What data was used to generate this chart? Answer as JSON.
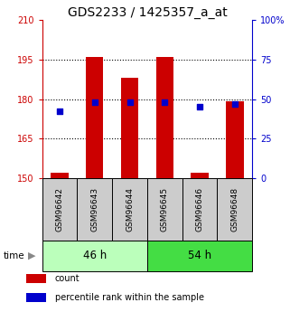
{
  "title": "GDS2233 / 1425357_a_at",
  "samples": [
    "GSM96642",
    "GSM96643",
    "GSM96644",
    "GSM96645",
    "GSM96646",
    "GSM96648"
  ],
  "red_values": [
    152,
    196,
    188,
    196,
    152,
    179
  ],
  "blue_values_pct": [
    42,
    48,
    48,
    48,
    45,
    47
  ],
  "ylim_left": [
    150,
    210
  ],
  "ylim_right": [
    0,
    100
  ],
  "yticks_left": [
    150,
    165,
    180,
    195,
    210
  ],
  "yticks_right": [
    0,
    25,
    50,
    75,
    100
  ],
  "left_tick_color": "#cc0000",
  "right_tick_color": "#0000cc",
  "bar_color": "#cc0000",
  "dot_color": "#0000cc",
  "groups": [
    {
      "label": "46 h",
      "indices": [
        0,
        1,
        2
      ],
      "color": "#bbffbb"
    },
    {
      "label": "54 h",
      "indices": [
        3,
        4,
        5
      ],
      "color": "#44dd44"
    }
  ],
  "sample_box_color": "#cccccc",
  "legend_items": [
    {
      "color": "#cc0000",
      "label": "count"
    },
    {
      "color": "#0000cc",
      "label": "percentile rank within the sample"
    }
  ],
  "bar_width": 0.5,
  "title_fontsize": 10,
  "tick_fontsize": 7,
  "sample_fontsize": 6.5
}
